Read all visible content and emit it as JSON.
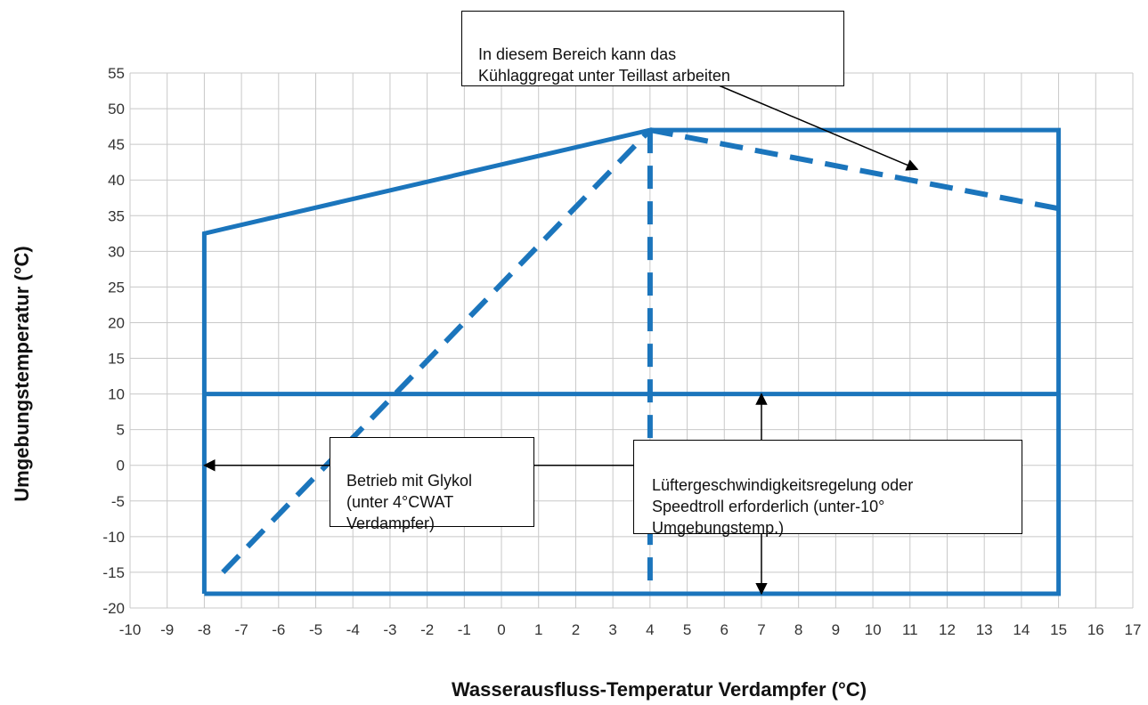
{
  "chart_data": {
    "type": "line",
    "xlabel": "Wasserausfluss-Temperatur Verdampfer (°C)",
    "ylabel": "Umgebungstemperatur (°C)",
    "xlim": [
      -10,
      17
    ],
    "ylim": [
      -20,
      55
    ],
    "x_ticks": [
      -10,
      -9,
      -8,
      -7,
      -6,
      -5,
      -4,
      -3,
      -2,
      -1,
      0,
      1,
      2,
      3,
      4,
      5,
      6,
      7,
      8,
      9,
      10,
      11,
      12,
      13,
      14,
      15,
      16,
      17
    ],
    "y_ticks": [
      55,
      50,
      45,
      40,
      35,
      30,
      25,
      20,
      15,
      10,
      5,
      0,
      -5,
      -10,
      -15,
      -20
    ],
    "grid": true,
    "colors": {
      "envelope": "#1b75bc",
      "grid": "#c8c8c8",
      "annotation": "#000000"
    },
    "series": [
      {
        "style": "solid",
        "points": [
          [
            -8,
            -18
          ],
          [
            -8,
            32.5
          ],
          [
            4,
            47
          ],
          [
            15,
            47
          ],
          [
            15,
            -18
          ],
          [
            -8,
            -18
          ]
        ]
      },
      {
        "style": "solid",
        "points": [
          [
            -8,
            10
          ],
          [
            15,
            10
          ]
        ]
      },
      {
        "style": "dashed",
        "points": [
          [
            -7.5,
            -15
          ],
          [
            4,
            47
          ]
        ]
      },
      {
        "style": "dashed",
        "points": [
          [
            4,
            47
          ],
          [
            4,
            -18
          ]
        ]
      },
      {
        "style": "dashed",
        "points": [
          [
            4,
            47
          ],
          [
            15,
            36
          ]
        ]
      }
    ],
    "annotations": [
      {
        "id": "teillast",
        "text": "In  diesem  Bereich  kann  das\nKühlaggregat unter Teillast arbeiten",
        "arrow_to": [
          11.2,
          41.5
        ]
      },
      {
        "id": "glykol",
        "text": "Betrieb mit Glykol\n(unter  4°CWAT\nVerdampfer)",
        "arrows_to": [
          [
            -8,
            0
          ],
          [
            4,
            0
          ]
        ]
      },
      {
        "id": "lueftung",
        "text": "Lüftergeschwindigkeitsregelung  oder\nSpeedtroll erforderlich  (unter-10°\nUmgebungstemp.)",
        "arrows_to": [
          [
            7,
            10
          ],
          [
            7,
            -18
          ]
        ]
      }
    ]
  }
}
